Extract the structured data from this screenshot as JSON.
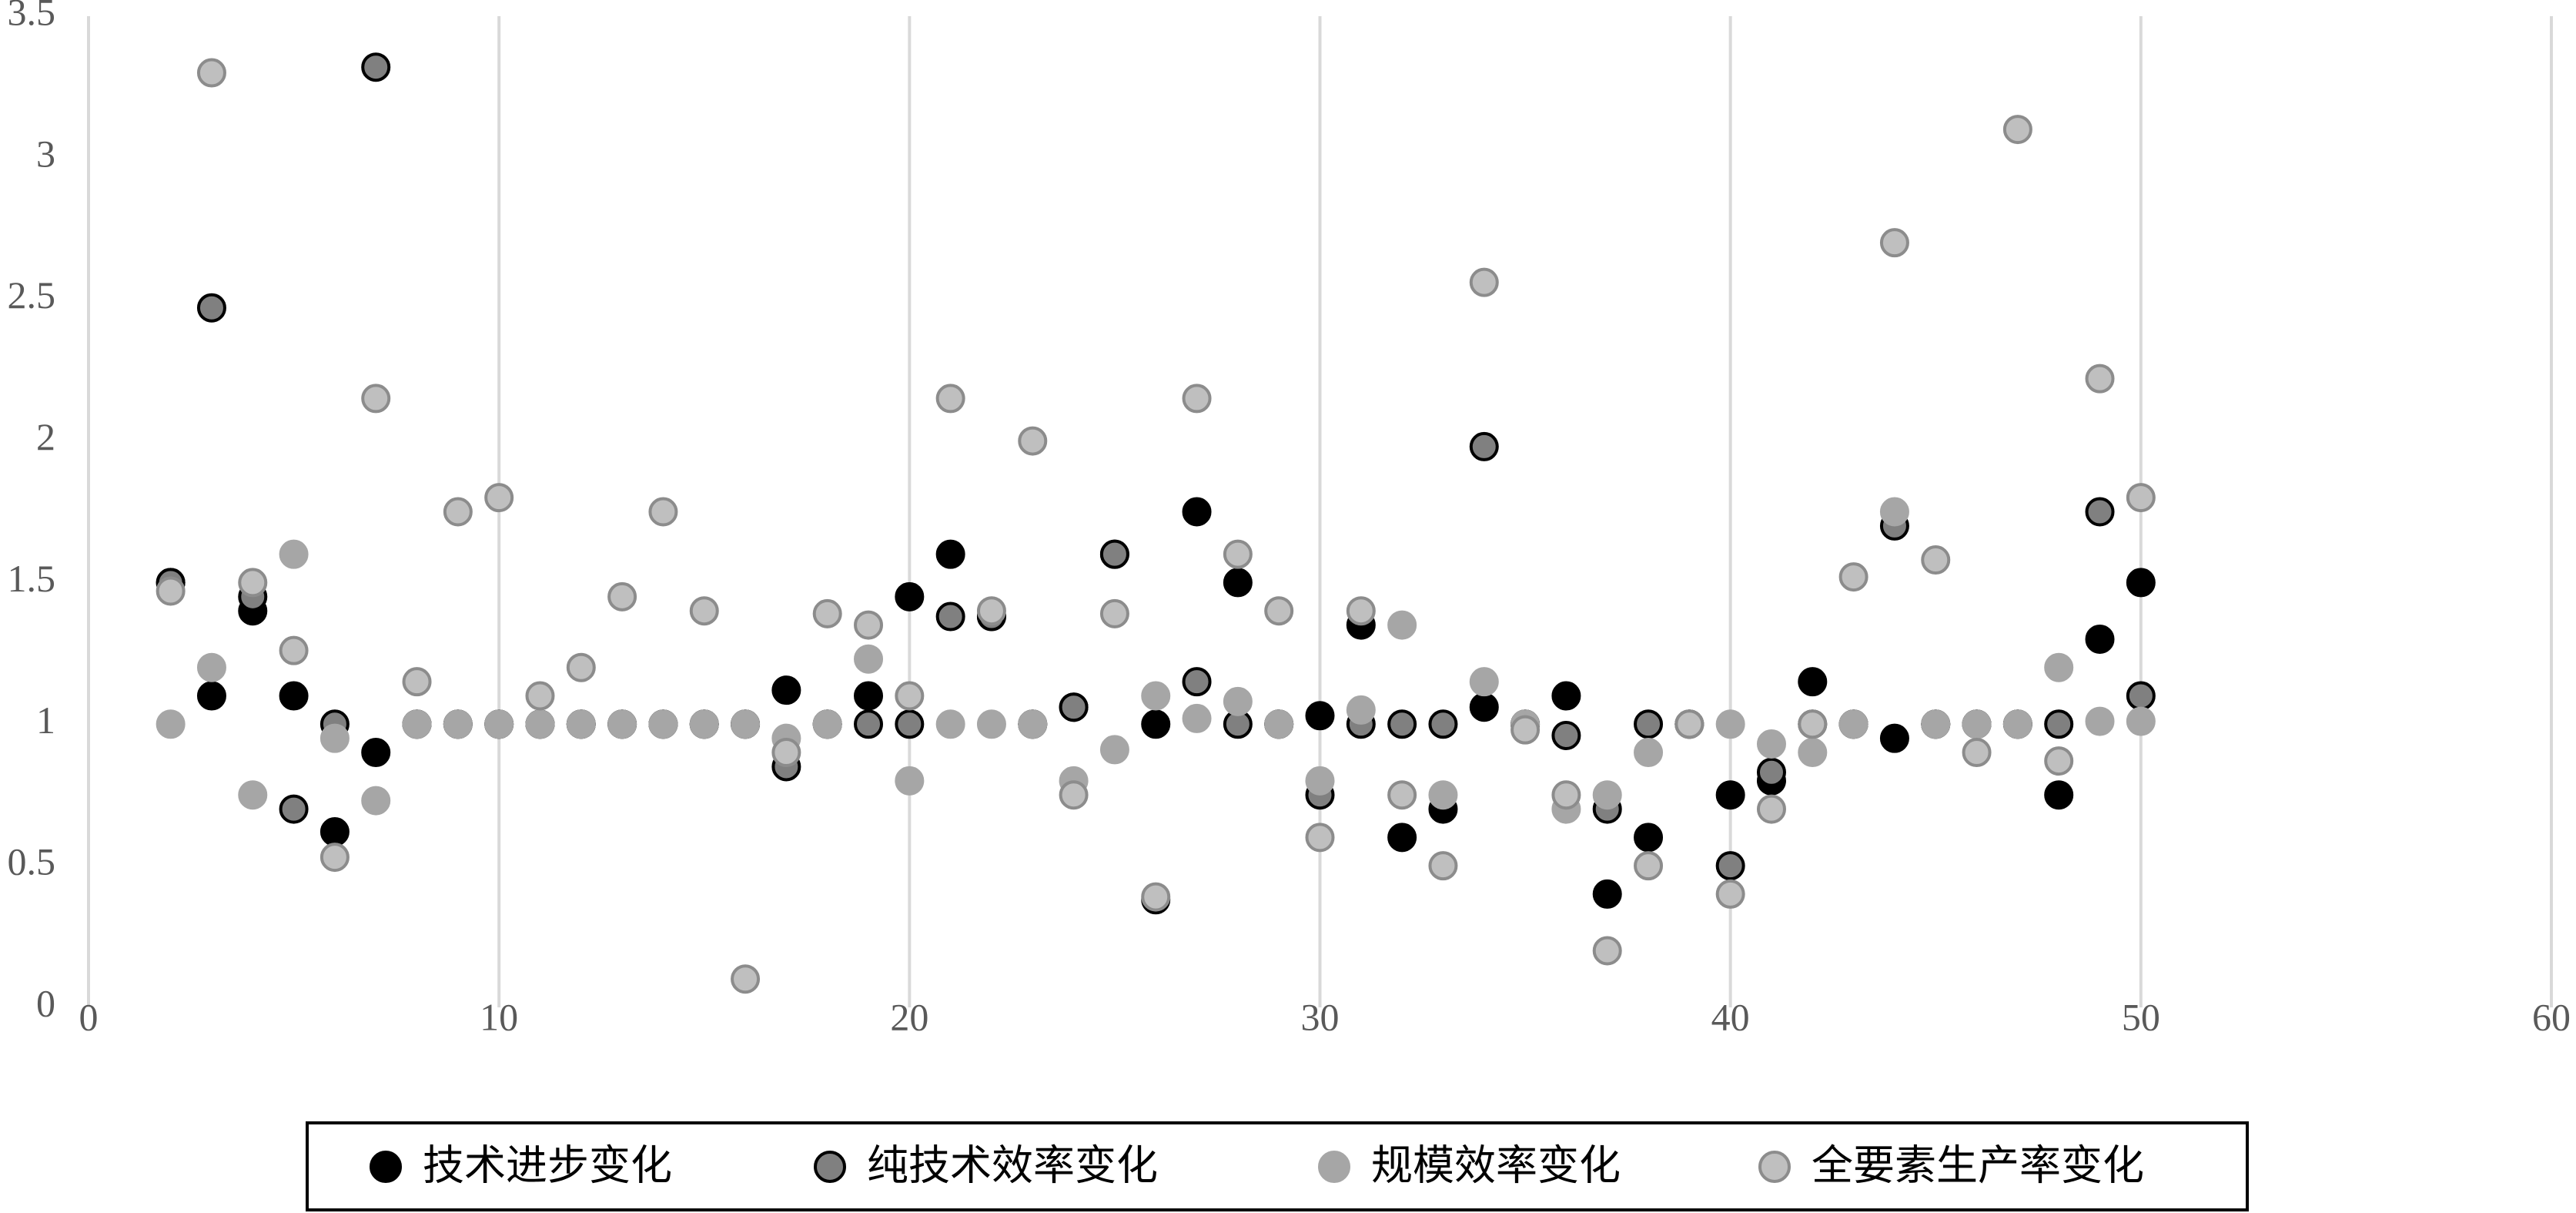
{
  "chart_data": {
    "type": "scatter",
    "x": [
      2,
      3,
      4,
      5,
      6,
      7,
      8,
      9,
      10,
      11,
      12,
      13,
      14,
      15,
      16,
      17,
      18,
      19,
      20,
      21,
      22,
      23,
      24,
      25,
      26,
      27,
      28,
      29,
      30,
      31,
      32,
      33,
      34,
      35,
      36,
      37,
      38,
      39,
      40,
      41,
      42,
      43,
      44,
      45,
      46,
      47,
      48,
      49,
      50
    ],
    "series": [
      {
        "name": "技术进步变化",
        "color": "#000000",
        "edge": "#000000",
        "values": [
          1.5,
          1.1,
          1.4,
          1.1,
          0.62,
          0.9,
          1,
          1,
          1,
          1,
          1,
          1,
          1,
          1,
          1,
          1.12,
          1,
          1.1,
          1.45,
          1.6,
          1.38,
          1,
          1.06,
          1.6,
          1,
          1.75,
          1.5,
          1,
          1.03,
          1.35,
          0.6,
          0.7,
          1.06,
          1,
          1.1,
          0.4,
          0.6,
          1,
          0.75,
          0.8,
          1.15,
          1,
          0.95,
          1,
          1,
          1,
          0.75,
          1.3,
          1.5
        ]
      },
      {
        "name": "纯技术效率变化",
        "color": "#808080",
        "edge": "#000000",
        "values": [
          1.5,
          2.47,
          1.45,
          0.7,
          1,
          3.32,
          1,
          1,
          1,
          1,
          1,
          1,
          1,
          1,
          1,
          0.85,
          1,
          1,
          1,
          1.38,
          1.38,
          1,
          1.06,
          1.6,
          0.38,
          1.15,
          1,
          1,
          0.75,
          1,
          1,
          1,
          1.98,
          1,
          0.96,
          0.7,
          1,
          1,
          0.5,
          0.83,
          1,
          1,
          1.7,
          1,
          1,
          1,
          1,
          1.75,
          1.1
        ]
      },
      {
        "name": "规模效率变化",
        "color": "#a6a6a6",
        "edge": "#a6a6a6",
        "values": [
          1,
          1.2,
          0.75,
          1.6,
          0.95,
          0.73,
          1,
          1,
          1,
          1,
          1,
          1,
          1,
          1,
          1,
          0.95,
          1,
          1.23,
          0.8,
          1,
          1,
          1,
          0.8,
          0.91,
          1.1,
          1.02,
          1.08,
          1,
          0.8,
          1.05,
          1.35,
          0.75,
          1.15,
          1,
          0.7,
          0.75,
          0.9,
          1,
          1,
          0.93,
          0.9,
          1,
          1.75,
          1,
          1,
          1,
          1.2,
          1.01,
          1.01
        ]
      },
      {
        "name": "全要素生产率变化",
        "color": "#bfbfbf",
        "edge": "#8c8c8c",
        "values": [
          1.47,
          3.3,
          1.5,
          1.26,
          0.53,
          2.15,
          1.15,
          1.75,
          1.8,
          1.1,
          1.2,
          1.45,
          1.75,
          1.4,
          0.1,
          0.9,
          1.39,
          1.35,
          1.1,
          2.15,
          1.4,
          2,
          0.75,
          1.39,
          0.39,
          2.15,
          1.6,
          1.4,
          0.6,
          1.4,
          0.75,
          0.5,
          2.56,
          0.98,
          0.75,
          0.2,
          0.5,
          1,
          0.4,
          0.7,
          1,
          1.52,
          2.7,
          1.58,
          0.9,
          3.1,
          0.87,
          2.22,
          1.8
        ]
      }
    ],
    "xlim": [
      0,
      60
    ],
    "xticks": [
      0,
      10,
      20,
      30,
      40,
      50,
      60
    ],
    "ylim": [
      0,
      3.5
    ],
    "yticks": [
      0,
      0.5,
      1,
      1.5,
      2,
      2.5,
      3,
      3.5
    ],
    "grid": "x",
    "legend": "bottom"
  }
}
